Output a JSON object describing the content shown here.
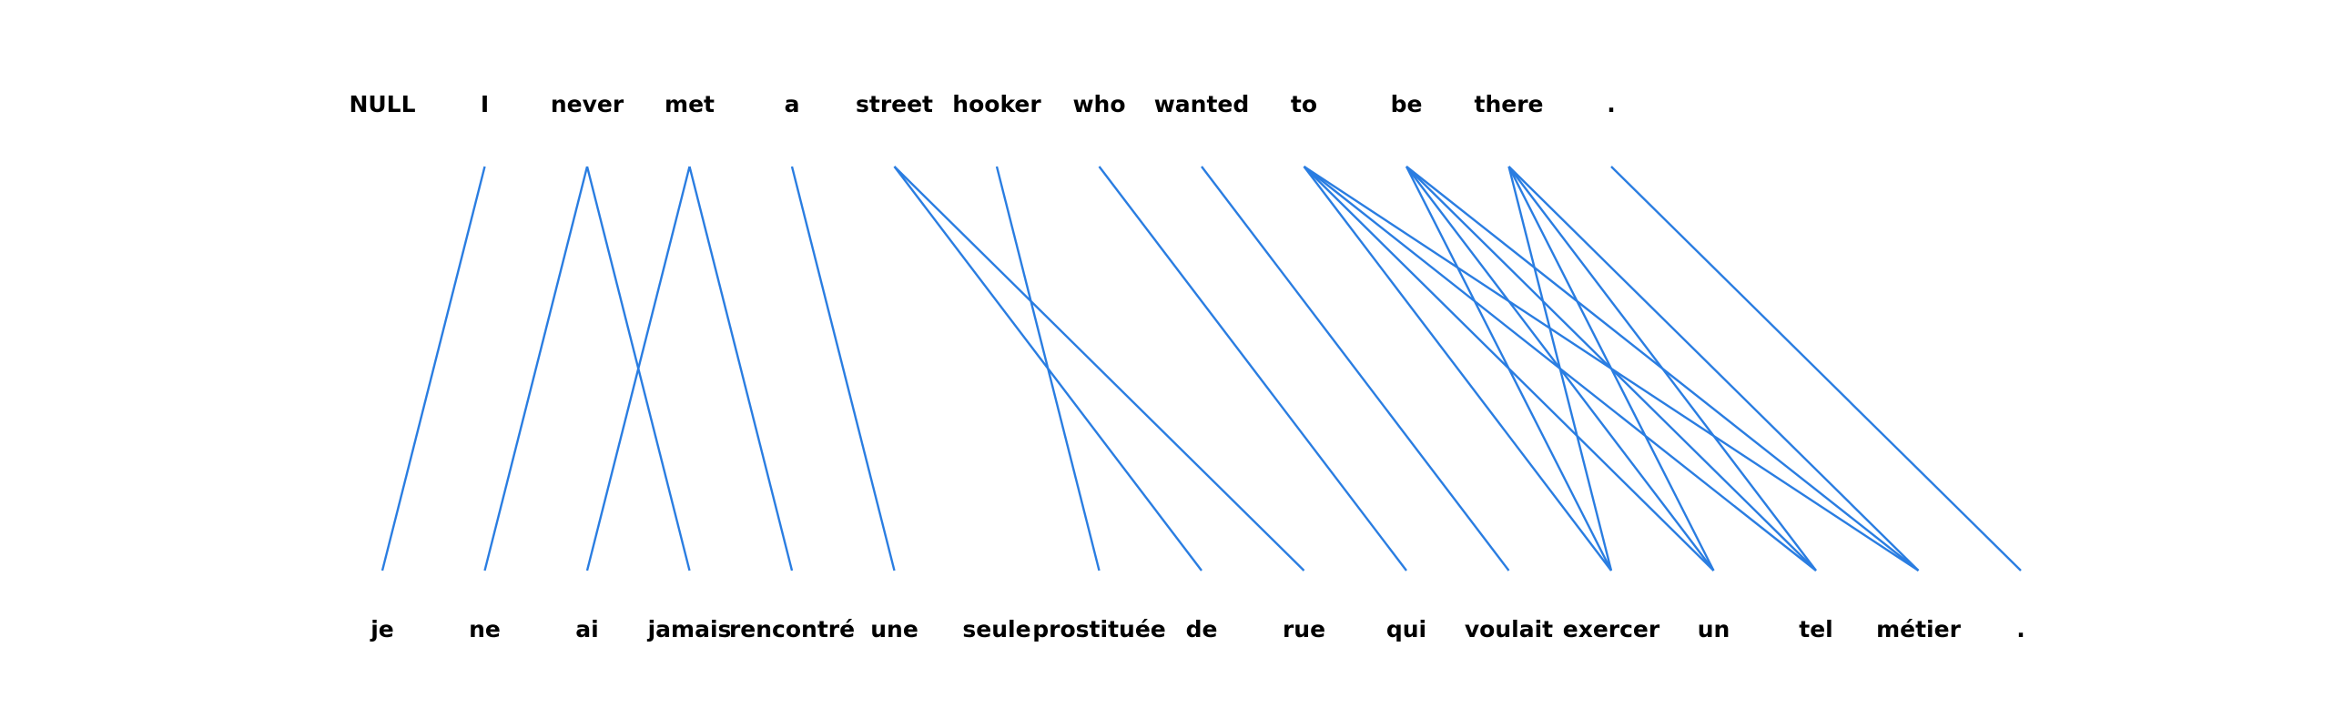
{
  "diagram": {
    "source_words": [
      "NULL",
      "I",
      "never",
      "met",
      "a",
      "street",
      "hooker",
      "who",
      "wanted",
      "to",
      "be",
      "there",
      "."
    ],
    "target_words": [
      "je",
      "ne",
      "ai",
      "jamais",
      "rencontré",
      "une",
      "seule",
      "prostituée",
      "de",
      "rue",
      "qui",
      "voulait",
      "exercer",
      "un",
      "tel",
      "métier",
      "."
    ],
    "alignments": [
      [
        1,
        0
      ],
      [
        2,
        1
      ],
      [
        2,
        3
      ],
      [
        3,
        2
      ],
      [
        3,
        4
      ],
      [
        4,
        5
      ],
      [
        5,
        8
      ],
      [
        5,
        9
      ],
      [
        6,
        7
      ],
      [
        7,
        10
      ],
      [
        8,
        11
      ],
      [
        9,
        12
      ],
      [
        9,
        13
      ],
      [
        9,
        14
      ],
      [
        9,
        15
      ],
      [
        10,
        12
      ],
      [
        10,
        13
      ],
      [
        10,
        14
      ],
      [
        10,
        15
      ],
      [
        11,
        12
      ],
      [
        11,
        13
      ],
      [
        11,
        14
      ],
      [
        11,
        15
      ],
      [
        12,
        16
      ]
    ],
    "line_color": "#2a7de1",
    "text_color": "#000000"
  }
}
